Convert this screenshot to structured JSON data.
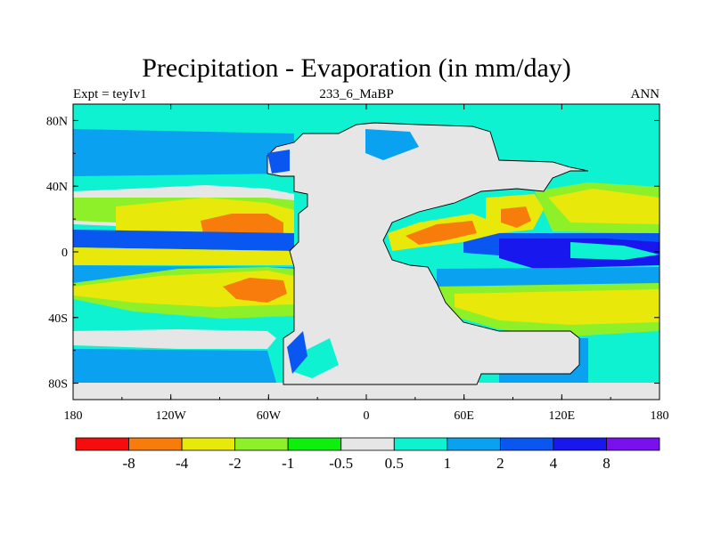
{
  "title": "Precipitation - Evaporation (in mm/day)",
  "subtitle_left": "Expt = teyIv1",
  "subtitle_center": "233_6_MaBP",
  "subtitle_right": "ANN",
  "map": {
    "lon_range": [
      -180,
      180
    ],
    "lat_range": [
      -90,
      90
    ],
    "lon_ticks": [
      {
        "value": -180,
        "label": "180"
      },
      {
        "value": -120,
        "label": "120W"
      },
      {
        "value": -60,
        "label": "60W"
      },
      {
        "value": 0,
        "label": "0"
      },
      {
        "value": 60,
        "label": "60E"
      },
      {
        "value": 120,
        "label": "120E"
      },
      {
        "value": 180,
        "label": "180"
      }
    ],
    "lat_ticks": [
      {
        "value": 80,
        "label": "80N"
      },
      {
        "value": 40,
        "label": "40N"
      },
      {
        "value": 0,
        "label": "0"
      },
      {
        "value": -40,
        "label": "40S"
      },
      {
        "value": -80,
        "label": "80S"
      }
    ]
  },
  "colorbar": {
    "colors": [
      "#f70c0c",
      "#f77c0c",
      "#e8e80a",
      "#8ef028",
      "#0cf00c",
      "#e6e6e6",
      "#0ef2d2",
      "#0aa2f0",
      "#0a56f0",
      "#1818ee",
      "#7a10ee"
    ],
    "labels": [
      "-8",
      "-4",
      "-2",
      "-1",
      "-0.5",
      "0.5",
      "1",
      "2",
      "4",
      "8"
    ]
  },
  "colors": {
    "land": "#e6e6e6",
    "ocean_base": "#0ef2d2",
    "coast": "#000000"
  }
}
